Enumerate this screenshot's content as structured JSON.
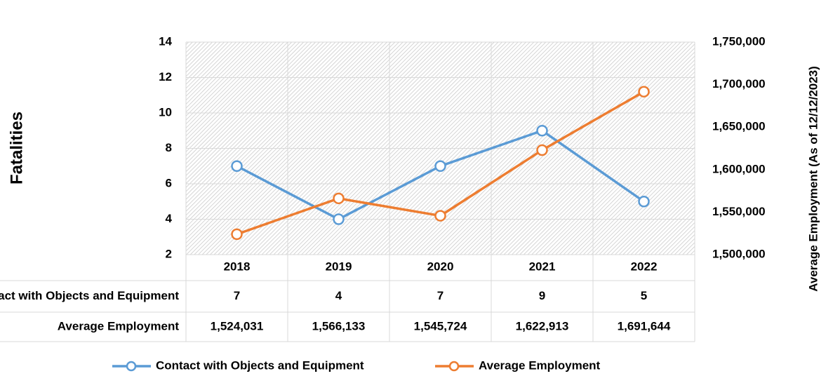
{
  "chart_data": {
    "type": "line",
    "categories": [
      "2018",
      "2019",
      "2020",
      "2021",
      "2022"
    ],
    "series": [
      {
        "name": "Contact with Objects and Equipment",
        "color": "#5b9bd5",
        "values": [
          7,
          4,
          7,
          9,
          5
        ]
      },
      {
        "name": "Average Employment",
        "color": "#ed7d31",
        "axis": "y2",
        "values": [
          1524031,
          1566133,
          1545724,
          1622913,
          1691644
        ],
        "value_labels": [
          "1,524,031",
          "1,566,133",
          "1,545,724",
          "1,622,913",
          "1,691,644"
        ]
      }
    ],
    "y_label": "Fatalities",
    "y2_label": "Average Employment  (As of 12/12/2023)",
    "ylim": [
      2,
      14
    ],
    "yticks": [
      2,
      4,
      6,
      8,
      10,
      12,
      14
    ],
    "y2lim": [
      1500000,
      1750000
    ],
    "y2ticks": [
      {
        "value": 1500000,
        "label": "1,500,000"
      },
      {
        "value": 1550000,
        "label": "1,550,000"
      },
      {
        "value": 1600000,
        "label": "1,600,000"
      },
      {
        "value": 1650000,
        "label": "1,650,000"
      },
      {
        "value": 1700000,
        "label": "1,700,000"
      },
      {
        "value": 1750000,
        "label": "1,750,000"
      }
    ],
    "grid": true
  }
}
